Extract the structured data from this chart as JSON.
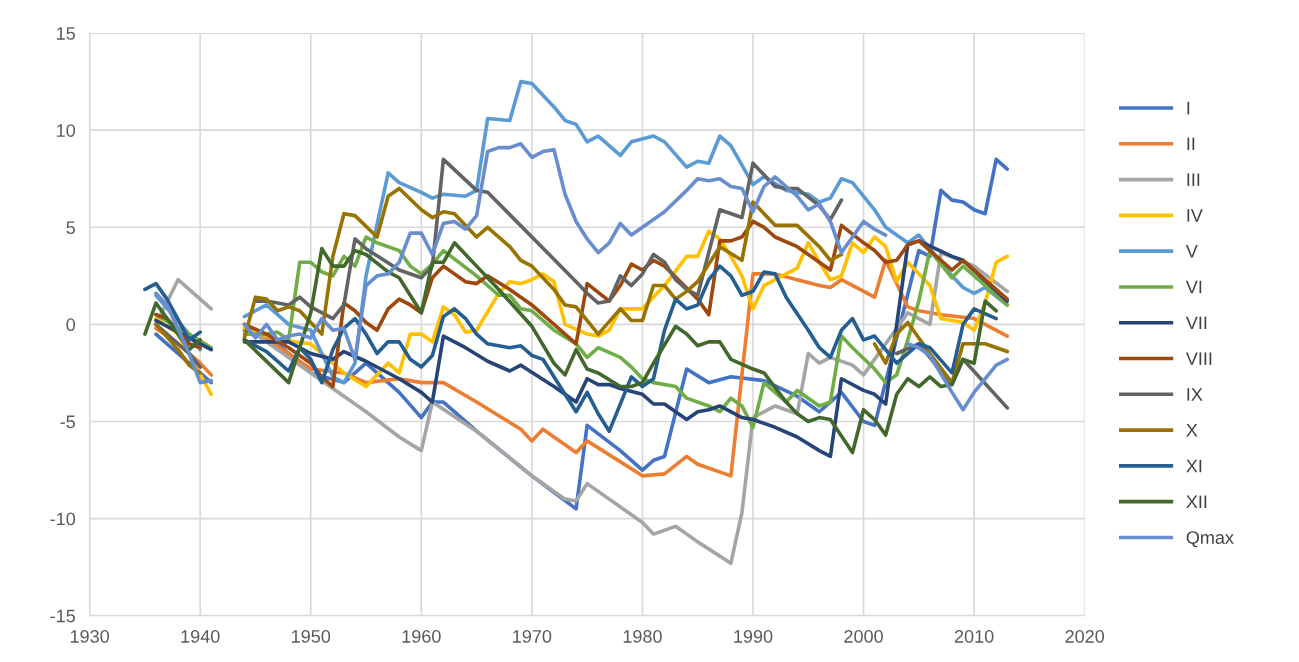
{
  "chart_data": {
    "type": "line",
    "xlim": [
      1930,
      2020
    ],
    "xticks": [
      1930,
      1940,
      1950,
      1960,
      1970,
      1980,
      1990,
      2000,
      2010,
      2020
    ],
    "ylim": [
      -15,
      15
    ],
    "yticks": [
      -15,
      -10,
      -5,
      0,
      5,
      10,
      15
    ],
    "grid": true,
    "legend": "right",
    "line_style": "solid",
    "series": [
      {
        "name": "I",
        "color": "#4472c4",
        "x": [
          1936,
          1937,
          1939,
          1941,
          1942,
          1944,
          1947,
          1950,
          1953,
          1955,
          1958,
          1960,
          1961,
          1962,
          1965,
          1970,
          1974,
          1975,
          1978,
          1980,
          1981,
          1982,
          1984,
          1986,
          1988,
          1991,
          1994,
          1996,
          1998,
          2000,
          2001,
          2005,
          2006,
          2007,
          2008,
          2009,
          2010,
          2011,
          2012,
          2013
        ],
        "values": [
          -0.5,
          -1,
          -2,
          -3,
          null,
          -0.3,
          -1,
          -2.5,
          -3,
          -2,
          -3.5,
          -4.8,
          -4,
          -4,
          -5.5,
          -7.8,
          -9.5,
          -5.2,
          -6.5,
          -7.5,
          -7,
          -6.8,
          -2.3,
          -3,
          -2.7,
          -2.9,
          -3.7,
          -4.5,
          -3.5,
          -5,
          -5.2,
          3.8,
          3.5,
          6.9,
          6.4,
          6.3,
          5.9,
          5.7,
          8.5,
          8.0
        ]
      },
      {
        "name": "II",
        "color": "#ed7d31",
        "x": [
          1936,
          1938,
          1940,
          1941,
          1942,
          1944,
          1948,
          1950,
          1953,
          1955,
          1958,
          1960,
          1962,
          1965,
          1969,
          1970,
          1971,
          1974,
          1975,
          1980,
          1982,
          1984,
          1985,
          1988,
          1990,
          1992,
          1994,
          1996,
          1997,
          1998,
          2001,
          2002,
          2004,
          2005,
          2007,
          2010,
          2013
        ],
        "values": [
          -0.2,
          -1,
          -2,
          -2.6,
          null,
          0,
          -1.5,
          -2.3,
          -2.5,
          -3,
          -2.8,
          -3,
          -3,
          -4,
          -5.4,
          -6,
          -5.4,
          -6.6,
          -6,
          -7.8,
          -7.7,
          -6.8,
          -7.2,
          -7.8,
          2.6,
          2.6,
          2.3,
          2,
          1.9,
          2.3,
          1.4,
          3.3,
          0.9,
          0.7,
          0.5,
          0.3,
          -0.6
        ]
      },
      {
        "name": "III",
        "color": "#a5a5a5",
        "x": [
          1936,
          1938,
          1941,
          1942,
          1945,
          1950,
          1955,
          1958,
          1960,
          1961,
          1965,
          1970,
          1973,
          1974,
          1975,
          1980,
          1981,
          1983,
          1985,
          1988,
          1989,
          1990,
          1992,
          1994,
          1995,
          1996,
          1997,
          1999,
          2000,
          2004,
          2005,
          2006,
          2007,
          2010,
          2013
        ],
        "values": [
          0,
          2.3,
          0.8,
          null,
          -0.5,
          -2.5,
          -4.5,
          -5.8,
          -6.5,
          -4,
          -5.5,
          -7.8,
          -9,
          -9.1,
          -8.2,
          -10.2,
          -10.8,
          -10.4,
          -11.2,
          -12.3,
          -9.7,
          -4.8,
          -4.2,
          -4.6,
          -1.5,
          -2,
          -1.7,
          -2.1,
          -2.6,
          0.6,
          0.3,
          0,
          3.7,
          3,
          1.7
        ]
      },
      {
        "name": "IV",
        "color": "#ffc000",
        "x": [
          1936,
          1938,
          1941,
          1942,
          1944,
          1947,
          1950,
          1953,
          1955,
          1957,
          1958,
          1959,
          1960,
          1961,
          1962,
          1963,
          1964,
          1965,
          1967,
          1968,
          1969,
          1970,
          1971,
          1972,
          1973,
          1975,
          1976,
          1977,
          1978,
          1980,
          1982,
          1984,
          1985,
          1986,
          1987,
          1988,
          1989,
          1990,
          1991,
          1992,
          1994,
          1995,
          1996,
          1997,
          1998,
          1999,
          2000,
          2001,
          2002,
          2003,
          2004,
          2006,
          2007,
          2008,
          2009,
          2010,
          2011,
          2012,
          2013
        ],
        "values": [
          0.3,
          -0.5,
          -3.6,
          null,
          -0.2,
          -0.8,
          -1,
          -2.5,
          -3.2,
          -2,
          -2.5,
          -0.5,
          -0.5,
          -0.9,
          0.9,
          0.5,
          -0.4,
          -0.3,
          1.6,
          2.2,
          2.1,
          2.3,
          2.6,
          2.2,
          0,
          -0.5,
          -0.6,
          -0.3,
          0.8,
          0.8,
          2,
          3.5,
          3.5,
          4.8,
          4.4,
          3.5,
          2.5,
          0.8,
          2,
          2.3,
          2.9,
          4.2,
          3.2,
          2.3,
          2.5,
          4.2,
          3.7,
          4.5,
          4,
          2.2,
          3.2,
          2,
          0.3,
          0.2,
          0.1,
          -0.3,
          1.1,
          3.2,
          3.5
        ]
      },
      {
        "name": "V",
        "color": "#5b9bd5",
        "x": [
          1936,
          1939,
          1940,
          1942,
          1944,
          1946,
          1948,
          1950,
          1952,
          1953,
          1954,
          1955,
          1957,
          1958,
          1960,
          1961,
          1962,
          1964,
          1965,
          1966,
          1968,
          1969,
          1970,
          1972,
          1973,
          1974,
          1975,
          1976,
          1978,
          1979,
          1981,
          1982,
          1984,
          1985,
          1986,
          1987,
          1988,
          1989,
          1990,
          1991,
          1993,
          1995,
          1996,
          1997,
          1998,
          1999,
          2001,
          2002,
          2004,
          2005,
          2008,
          2009,
          2010,
          2011,
          2013
        ],
        "values": [
          1.5,
          -0.5,
          -1.3,
          null,
          0.4,
          1,
          0,
          -0.3,
          -2.7,
          -3,
          -2,
          2.5,
          7.8,
          7.3,
          6.8,
          6.5,
          6.7,
          6.6,
          6.9,
          10.6,
          10.5,
          12.5,
          12.4,
          11.2,
          10.5,
          10.3,
          9.4,
          9.7,
          8.7,
          9.4,
          9.7,
          9.4,
          8.1,
          8.4,
          8.3,
          9.7,
          9.2,
          8.2,
          7.2,
          7.6,
          6.9,
          6.7,
          6.3,
          6.5,
          7.5,
          7.3,
          5.9,
          5,
          4.2,
          4.6,
          2.5,
          1.9,
          1.6,
          1.9,
          1
        ]
      },
      {
        "name": "VI",
        "color": "#70ad47",
        "x": [
          1936,
          1939,
          1941,
          1942,
          1944,
          1946,
          1947,
          1948,
          1949,
          1950,
          1951,
          1952,
          1953,
          1954,
          1955,
          1956,
          1958,
          1959,
          1960,
          1961,
          1962,
          1965,
          1967,
          1968,
          1969,
          1970,
          1972,
          1974,
          1975,
          1976,
          1978,
          1979,
          1980,
          1981,
          1983,
          1984,
          1986,
          1987,
          1988,
          1989,
          1990,
          1991,
          1993,
          1994,
          1996,
          1997,
          1998,
          1999,
          2001,
          2002,
          2003,
          2004,
          2005,
          2006,
          2008,
          2009,
          2013
        ],
        "values": [
          0.5,
          -0.5,
          -1.2,
          null,
          -0.5,
          -0.5,
          -0.4,
          -0.8,
          3.2,
          3.2,
          2.7,
          2.5,
          3.5,
          3,
          4.5,
          4.2,
          3.8,
          3,
          2.6,
          3.1,
          3.8,
          2.5,
          1.5,
          1.5,
          0.8,
          0.7,
          -0.3,
          -1,
          -1.7,
          -1.2,
          -1.7,
          -2.2,
          -2.8,
          -3,
          -3.2,
          -3.8,
          -4.2,
          -4.5,
          -3.8,
          -4.2,
          -5.3,
          -3,
          -4,
          -3.4,
          -4.2,
          -4,
          -0.6,
          -1.2,
          -2.3,
          -3,
          -2.6,
          -0.8,
          1.2,
          3.8,
          2.4,
          3,
          1
        ]
      },
      {
        "name": "VII",
        "color": "#264478",
        "x": [
          1936,
          1941,
          1942,
          1944,
          1948,
          1950,
          1952,
          1953,
          1955,
          1958,
          1960,
          1961,
          1962,
          1964,
          1966,
          1968,
          1969,
          1972,
          1974,
          1975,
          1976,
          1977,
          1978,
          1980,
          1981,
          1982,
          1984,
          1985,
          1986,
          1987,
          1989,
          1990,
          1992,
          1994,
          1996,
          1997,
          1998,
          2000,
          2001,
          2002,
          2004,
          2005,
          2008,
          2009,
          2013
        ],
        "values": [
          0.2,
          -1.3,
          null,
          -0.9,
          -0.9,
          -1.5,
          -1.8,
          -1.4,
          -1.9,
          -2.8,
          -3.5,
          -4,
          -0.6,
          -1.2,
          -1.9,
          -2.4,
          -2.1,
          -3.2,
          -4,
          -2.8,
          -3.1,
          -3.1,
          -3.3,
          -3.6,
          -4.1,
          -4.1,
          -4.9,
          -4.5,
          -4.4,
          -4.2,
          -4.8,
          -4.9,
          -5.3,
          -5.8,
          -6.5,
          -6.8,
          -2.8,
          -3.4,
          -3.6,
          -4.1,
          4.1,
          4.3,
          3.5,
          3.3,
          1.2
        ]
      },
      {
        "name": "VIII",
        "color": "#9e480e",
        "x": [
          1936,
          1937,
          1939,
          1940,
          1942,
          1944,
          1946,
          1948,
          1950,
          1951,
          1952,
          1953,
          1954,
          1955,
          1956,
          1957,
          1958,
          1959,
          1960,
          1961,
          1962,
          1964,
          1965,
          1966,
          1968,
          1970,
          1974,
          1975,
          1977,
          1978,
          1979,
          1980,
          1981,
          1982,
          1985,
          1986,
          1987,
          1988,
          1989,
          1990,
          1991,
          1992,
          1994,
          1996,
          1997,
          1998,
          2000,
          2001,
          2002,
          2003,
          2004,
          2005,
          2008,
          2009,
          2013
        ],
        "values": [
          0.5,
          0.3,
          -1,
          -1.2,
          null,
          0,
          -0.5,
          -1.2,
          -2,
          -2.7,
          -3.2,
          1.1,
          0.7,
          0.1,
          -0.3,
          0.8,
          1.3,
          1,
          0.6,
          2.4,
          3,
          2.2,
          2.1,
          2.5,
          1.8,
          1,
          -1,
          2.1,
          1.2,
          2,
          3.1,
          2.8,
          3.3,
          3,
          1.3,
          0.5,
          4.3,
          4.3,
          4.5,
          5.3,
          5,
          4.5,
          4,
          3.2,
          2.8,
          5.1,
          4.2,
          3.8,
          3.2,
          3.3,
          4.1,
          4.3,
          2.8,
          3.3,
          1.3
        ]
      },
      {
        "name": "IX",
        "color": "#636363",
        "x": [
          1936,
          1939,
          1940,
          1942,
          1945,
          1946,
          1948,
          1949,
          1950,
          1952,
          1953,
          1954,
          1955,
          1958,
          1960,
          1961,
          1962,
          1965,
          1966,
          1974,
          1975,
          1976,
          1977,
          1978,
          1979,
          1980,
          1981,
          1982,
          1983,
          1984,
          1985,
          1987,
          1989,
          1990,
          1992,
          1993,
          1994,
          1996,
          1997,
          1998,
          2000,
          2003,
          2005,
          2008,
          2009,
          2013
        ],
        "values": [
          0,
          -1.5,
          -2.2,
          null,
          1.2,
          1.2,
          1,
          1.4,
          0.9,
          0.3,
          1,
          4.4,
          3.9,
          2.8,
          2.4,
          3,
          8.5,
          6.9,
          6.8,
          2.2,
          1.6,
          1.1,
          1.2,
          2.5,
          2,
          2.6,
          3.6,
          3.2,
          2.3,
          1.8,
          1.5,
          5.9,
          5.5,
          8.3,
          7.1,
          7,
          7,
          6.1,
          5.4,
          6.4,
          null,
          -1.5,
          -1,
          -3.1,
          -1.8,
          -4.3
        ]
      },
      {
        "name": "X",
        "color": "#997300",
        "x": [
          1936,
          1938,
          1939,
          1940,
          1942,
          1944,
          1945,
          1946,
          1947,
          1948,
          1949,
          1950,
          1951,
          1952,
          1953,
          1954,
          1956,
          1957,
          1958,
          1960,
          1961,
          1962,
          1963,
          1965,
          1966,
          1968,
          1969,
          1970,
          1972,
          1973,
          1974,
          1976,
          1978,
          1979,
          1980,
          1981,
          1982,
          1983,
          1984,
          1985,
          1987,
          1989,
          1990,
          1992,
          1994,
          1996,
          1997,
          1998,
          2000,
          2001,
          2002,
          2003,
          2004,
          2006,
          2008,
          2009,
          2011,
          2013
        ],
        "values": [
          0,
          -1.3,
          -2.1,
          -2.5,
          null,
          -0.7,
          1.4,
          1.3,
          0.7,
          0.9,
          0.7,
          0.1,
          -0.5,
          3.5,
          5.7,
          5.6,
          4.5,
          6.6,
          7,
          5.9,
          5.5,
          5.8,
          5.7,
          4.5,
          5,
          4,
          3.3,
          3,
          1.8,
          1,
          0.9,
          -0.5,
          0.8,
          0.2,
          0.2,
          2,
          2,
          1.3,
          1.7,
          2.2,
          4,
          3.3,
          6.3,
          5.1,
          5.1,
          4,
          3.3,
          3.6,
          null,
          -1,
          -2,
          -0.5,
          0.1,
          -1.5,
          -3,
          -1,
          -1,
          -1.4
        ]
      },
      {
        "name": "XI",
        "color": "#255e91",
        "x": [
          1935,
          1936,
          1937,
          1939,
          1940,
          1942,
          1944,
          1946,
          1948,
          1949,
          1950,
          1951,
          1952,
          1953,
          1954,
          1955,
          1956,
          1957,
          1958,
          1959,
          1960,
          1961,
          1962,
          1963,
          1964,
          1965,
          1966,
          1967,
          1968,
          1969,
          1970,
          1971,
          1974,
          1975,
          1976,
          1977,
          1979,
          1980,
          1981,
          1982,
          1983,
          1984,
          1985,
          1986,
          1987,
          1988,
          1989,
          1990,
          1991,
          1992,
          1993,
          1995,
          1996,
          1997,
          1998,
          1999,
          2000,
          2001,
          2003,
          2005,
          2006,
          2008,
          2009,
          2010,
          2012
        ],
        "values": [
          1.8,
          2.1,
          1.3,
          -0.8,
          -0.4,
          null,
          -0.8,
          -1.4,
          -2.4,
          -1.2,
          -1.8,
          -3,
          -1.3,
          -0.2,
          0.3,
          -0.5,
          -1.5,
          -0.9,
          -0.9,
          -1.8,
          -2.2,
          -1.6,
          0.4,
          0.8,
          0.3,
          -0.5,
          -1,
          -1.1,
          -1.2,
          -1.1,
          -1.6,
          -1.8,
          -4.5,
          -3.5,
          -4.6,
          -5.5,
          -2.7,
          -3.2,
          -2.8,
          -0.3,
          1.3,
          0.8,
          1,
          2.3,
          3,
          2.5,
          1.5,
          1.7,
          2.7,
          2.6,
          1.4,
          -0.3,
          -1.2,
          -1.7,
          -0.3,
          0.3,
          -0.8,
          -0.6,
          -2,
          -1,
          -1.2,
          -2.5,
          0,
          0.8,
          0.3
        ]
      },
      {
        "name": "XII",
        "color": "#43682b",
        "x": [
          1935,
          1936,
          1938,
          1939,
          1940,
          1942,
          1944,
          1948,
          1950,
          1951,
          1952,
          1953,
          1954,
          1955,
          1957,
          1958,
          1960,
          1961,
          1962,
          1963,
          1965,
          1967,
          1970,
          1972,
          1973,
          1974,
          1975,
          1976,
          1978,
          1979,
          1980,
          1981,
          1983,
          1984,
          1985,
          1986,
          1987,
          1988,
          1990,
          1991,
          1993,
          1994,
          1995,
          1996,
          1997,
          1999,
          2000,
          2001,
          2002,
          2003,
          2004,
          2005,
          2006,
          2007,
          2008,
          2009,
          2010,
          2011,
          2012
        ],
        "values": [
          -0.5,
          1.1,
          -0.5,
          -1.3,
          -0.8,
          null,
          -0.8,
          -3,
          0.6,
          3.9,
          3,
          3,
          3.8,
          3.6,
          2.7,
          2.4,
          0.6,
          3.2,
          3.2,
          4.2,
          3,
          1.8,
          -0.1,
          -2,
          -2.6,
          -1.3,
          -2.3,
          -2.5,
          -3.2,
          -3.2,
          -3,
          -2,
          -0.1,
          -0.5,
          -1.1,
          -0.9,
          -0.9,
          -1.8,
          -2.3,
          -2.5,
          -4,
          -4.6,
          -5,
          -4.8,
          -4.9,
          -6.6,
          -4.4,
          -4.9,
          -5.7,
          -3.6,
          -2.8,
          -3.2,
          -2.7,
          -3.2,
          -3.1,
          -1.8,
          -2,
          1.2,
          0.7
        ]
      },
      {
        "name": "Qmax",
        "color": "#698ed0",
        "x": [
          1936,
          1937,
          1939,
          1940,
          1941,
          1942,
          1944,
          1945,
          1946,
          1947,
          1948,
          1949,
          1950,
          1951,
          1952,
          1953,
          1954,
          1955,
          1956,
          1957,
          1958,
          1959,
          1960,
          1961,
          1962,
          1963,
          1964,
          1965,
          1966,
          1967,
          1968,
          1969,
          1970,
          1971,
          1972,
          1973,
          1974,
          1975,
          1976,
          1977,
          1978,
          1979,
          1980,
          1982,
          1984,
          1985,
          1986,
          1987,
          1988,
          1989,
          1990,
          1991,
          1992,
          1993,
          1994,
          1995,
          1996,
          1997,
          1998,
          1999,
          2000,
          2001,
          2002,
          2003,
          2004,
          2005,
          2006,
          2008,
          2009,
          2010,
          2012,
          2013
        ],
        "values": [
          1.6,
          1,
          -1.5,
          -3,
          -2.9,
          null,
          0,
          -0.7,
          0,
          -0.8,
          -0.6,
          -0.5,
          -0.7,
          0.3,
          -0.3,
          -0.2,
          -1.8,
          2,
          2.5,
          2.6,
          3.2,
          4.7,
          4.7,
          3.6,
          5.2,
          5.3,
          4.9,
          5.6,
          8.9,
          9.1,
          9.1,
          9.3,
          8.6,
          8.9,
          9,
          6.7,
          5.3,
          4.4,
          3.7,
          4.2,
          5.2,
          4.6,
          5,
          5.8,
          6.9,
          7.5,
          7.4,
          7.5,
          7.1,
          7,
          5.8,
          7.1,
          7.6,
          7.1,
          6.6,
          5.9,
          6.2,
          5.3,
          3.7,
          4.5,
          5.3,
          4.9,
          4.6,
          null,
          -1,
          -1.2,
          -1.6,
          -3.5,
          -4.4,
          -3.5,
          -2.1,
          -1.8
        ]
      }
    ]
  }
}
